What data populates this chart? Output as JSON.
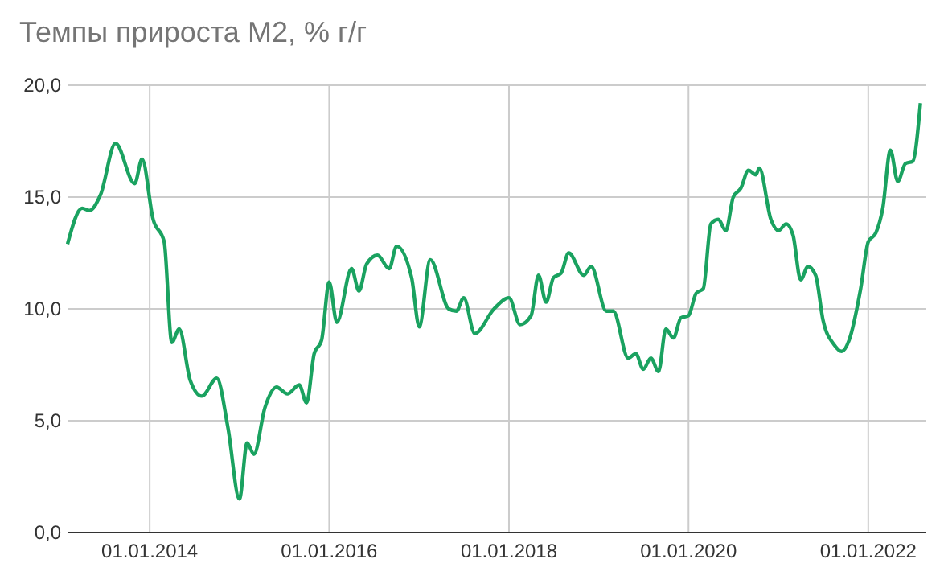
{
  "chart_data": {
    "type": "line",
    "title": "Темпы прироста М2, % г/г",
    "x": [
      "2013-02-01",
      "2013-04-01",
      "2013-05-01",
      "2013-06-15",
      "2013-08-15",
      "2013-11-01",
      "2013-12-01",
      "2014-01-15",
      "2014-03-01",
      "2014-04-01",
      "2014-05-01",
      "2014-06-15",
      "2014-08-01",
      "2014-10-01",
      "2014-11-15",
      "2015-01-01",
      "2015-02-01",
      "2015-03-01",
      "2015-04-15",
      "2015-06-01",
      "2015-07-15",
      "2015-09-01",
      "2015-10-01",
      "2015-11-01",
      "2015-12-01",
      "2016-01-01",
      "2016-02-01",
      "2016-04-01",
      "2016-05-01",
      "2016-06-01",
      "2016-07-15",
      "2016-09-01",
      "2016-10-01",
      "2016-12-01",
      "2017-01-01",
      "2017-02-15",
      "2017-05-01",
      "2017-06-01",
      "2017-07-01",
      "2017-08-15",
      "2017-11-01",
      "2018-01-01",
      "2018-02-15",
      "2018-04-01",
      "2018-05-01",
      "2018-06-01",
      "2018-07-01",
      "2018-08-01",
      "2018-09-01",
      "2018-11-01",
      "2018-12-01",
      "2019-02-01",
      "2019-03-01",
      "2019-05-01",
      "2019-06-01",
      "2019-07-01",
      "2019-08-01",
      "2019-09-01",
      "2019-10-01",
      "2019-11-01",
      "2019-12-01",
      "2020-01-01",
      "2020-02-01",
      "2020-03-01",
      "2020-04-01",
      "2020-05-01",
      "2020-06-01",
      "2020-07-01",
      "2020-08-01",
      "2020-09-01",
      "2020-10-01",
      "2020-10-15",
      "2020-12-01",
      "2021-01-01",
      "2021-02-01",
      "2021-03-01",
      "2021-04-01",
      "2021-05-01",
      "2021-06-01",
      "2021-07-01",
      "2021-08-15",
      "2021-09-15",
      "2021-10-15",
      "2021-12-01",
      "2022-01-01",
      "2022-02-01",
      "2022-03-01",
      "2022-04-01",
      "2022-05-01",
      "2022-06-01",
      "2022-07-01",
      "2022-08-01"
    ],
    "series": [
      {
        "color": "#1aa260",
        "values": [
          12.9,
          14.5,
          14.4,
          15.1,
          17.4,
          15.6,
          16.7,
          14.0,
          13.0,
          8.5,
          9.1,
          6.8,
          6.1,
          6.9,
          4.7,
          1.5,
          4.0,
          3.5,
          5.6,
          6.5,
          6.2,
          6.6,
          5.8,
          8.0,
          8.6,
          11.2,
          9.4,
          11.8,
          10.8,
          12.0,
          12.4,
          11.8,
          12.8,
          11.4,
          9.2,
          12.2,
          10.0,
          9.9,
          10.5,
          8.9,
          10.0,
          10.5,
          9.3,
          9.7,
          11.5,
          10.3,
          11.4,
          11.6,
          12.5,
          11.5,
          11.9,
          9.9,
          9.9,
          7.8,
          8.0,
          7.3,
          7.8,
          7.2,
          9.1,
          8.7,
          9.6,
          9.7,
          10.7,
          10.9,
          13.8,
          14.0,
          13.5,
          15.0,
          15.4,
          16.2,
          16.0,
          16.3,
          14.0,
          13.5,
          13.8,
          13.3,
          11.3,
          11.9,
          11.5,
          9.5,
          8.4,
          8.1,
          8.6,
          10.9,
          13.0,
          13.4,
          14.5,
          17.1,
          15.7,
          16.5,
          16.6,
          19.2
        ]
      }
    ],
    "xlim": [
      "2013-02-01",
      "2022-08-25"
    ],
    "xticks": [
      {
        "value": "2014-01-01",
        "label": "01.01.2014"
      },
      {
        "value": "2016-01-01",
        "label": "01.01.2016"
      },
      {
        "value": "2018-01-01",
        "label": "01.01.2018"
      },
      {
        "value": "2020-01-01",
        "label": "01.01.2020"
      },
      {
        "value": "2022-01-01",
        "label": "01.01.2022"
      }
    ],
    "ylim": [
      0,
      20
    ],
    "yticks": [
      {
        "value": 0,
        "label": "0,0"
      },
      {
        "value": 5,
        "label": "5,0"
      },
      {
        "value": 10,
        "label": "10,0"
      },
      {
        "value": 15,
        "label": "15,0"
      },
      {
        "value": 20,
        "label": "20,0"
      }
    ],
    "grid": true,
    "marker": "none",
    "line_style": "solid"
  }
}
